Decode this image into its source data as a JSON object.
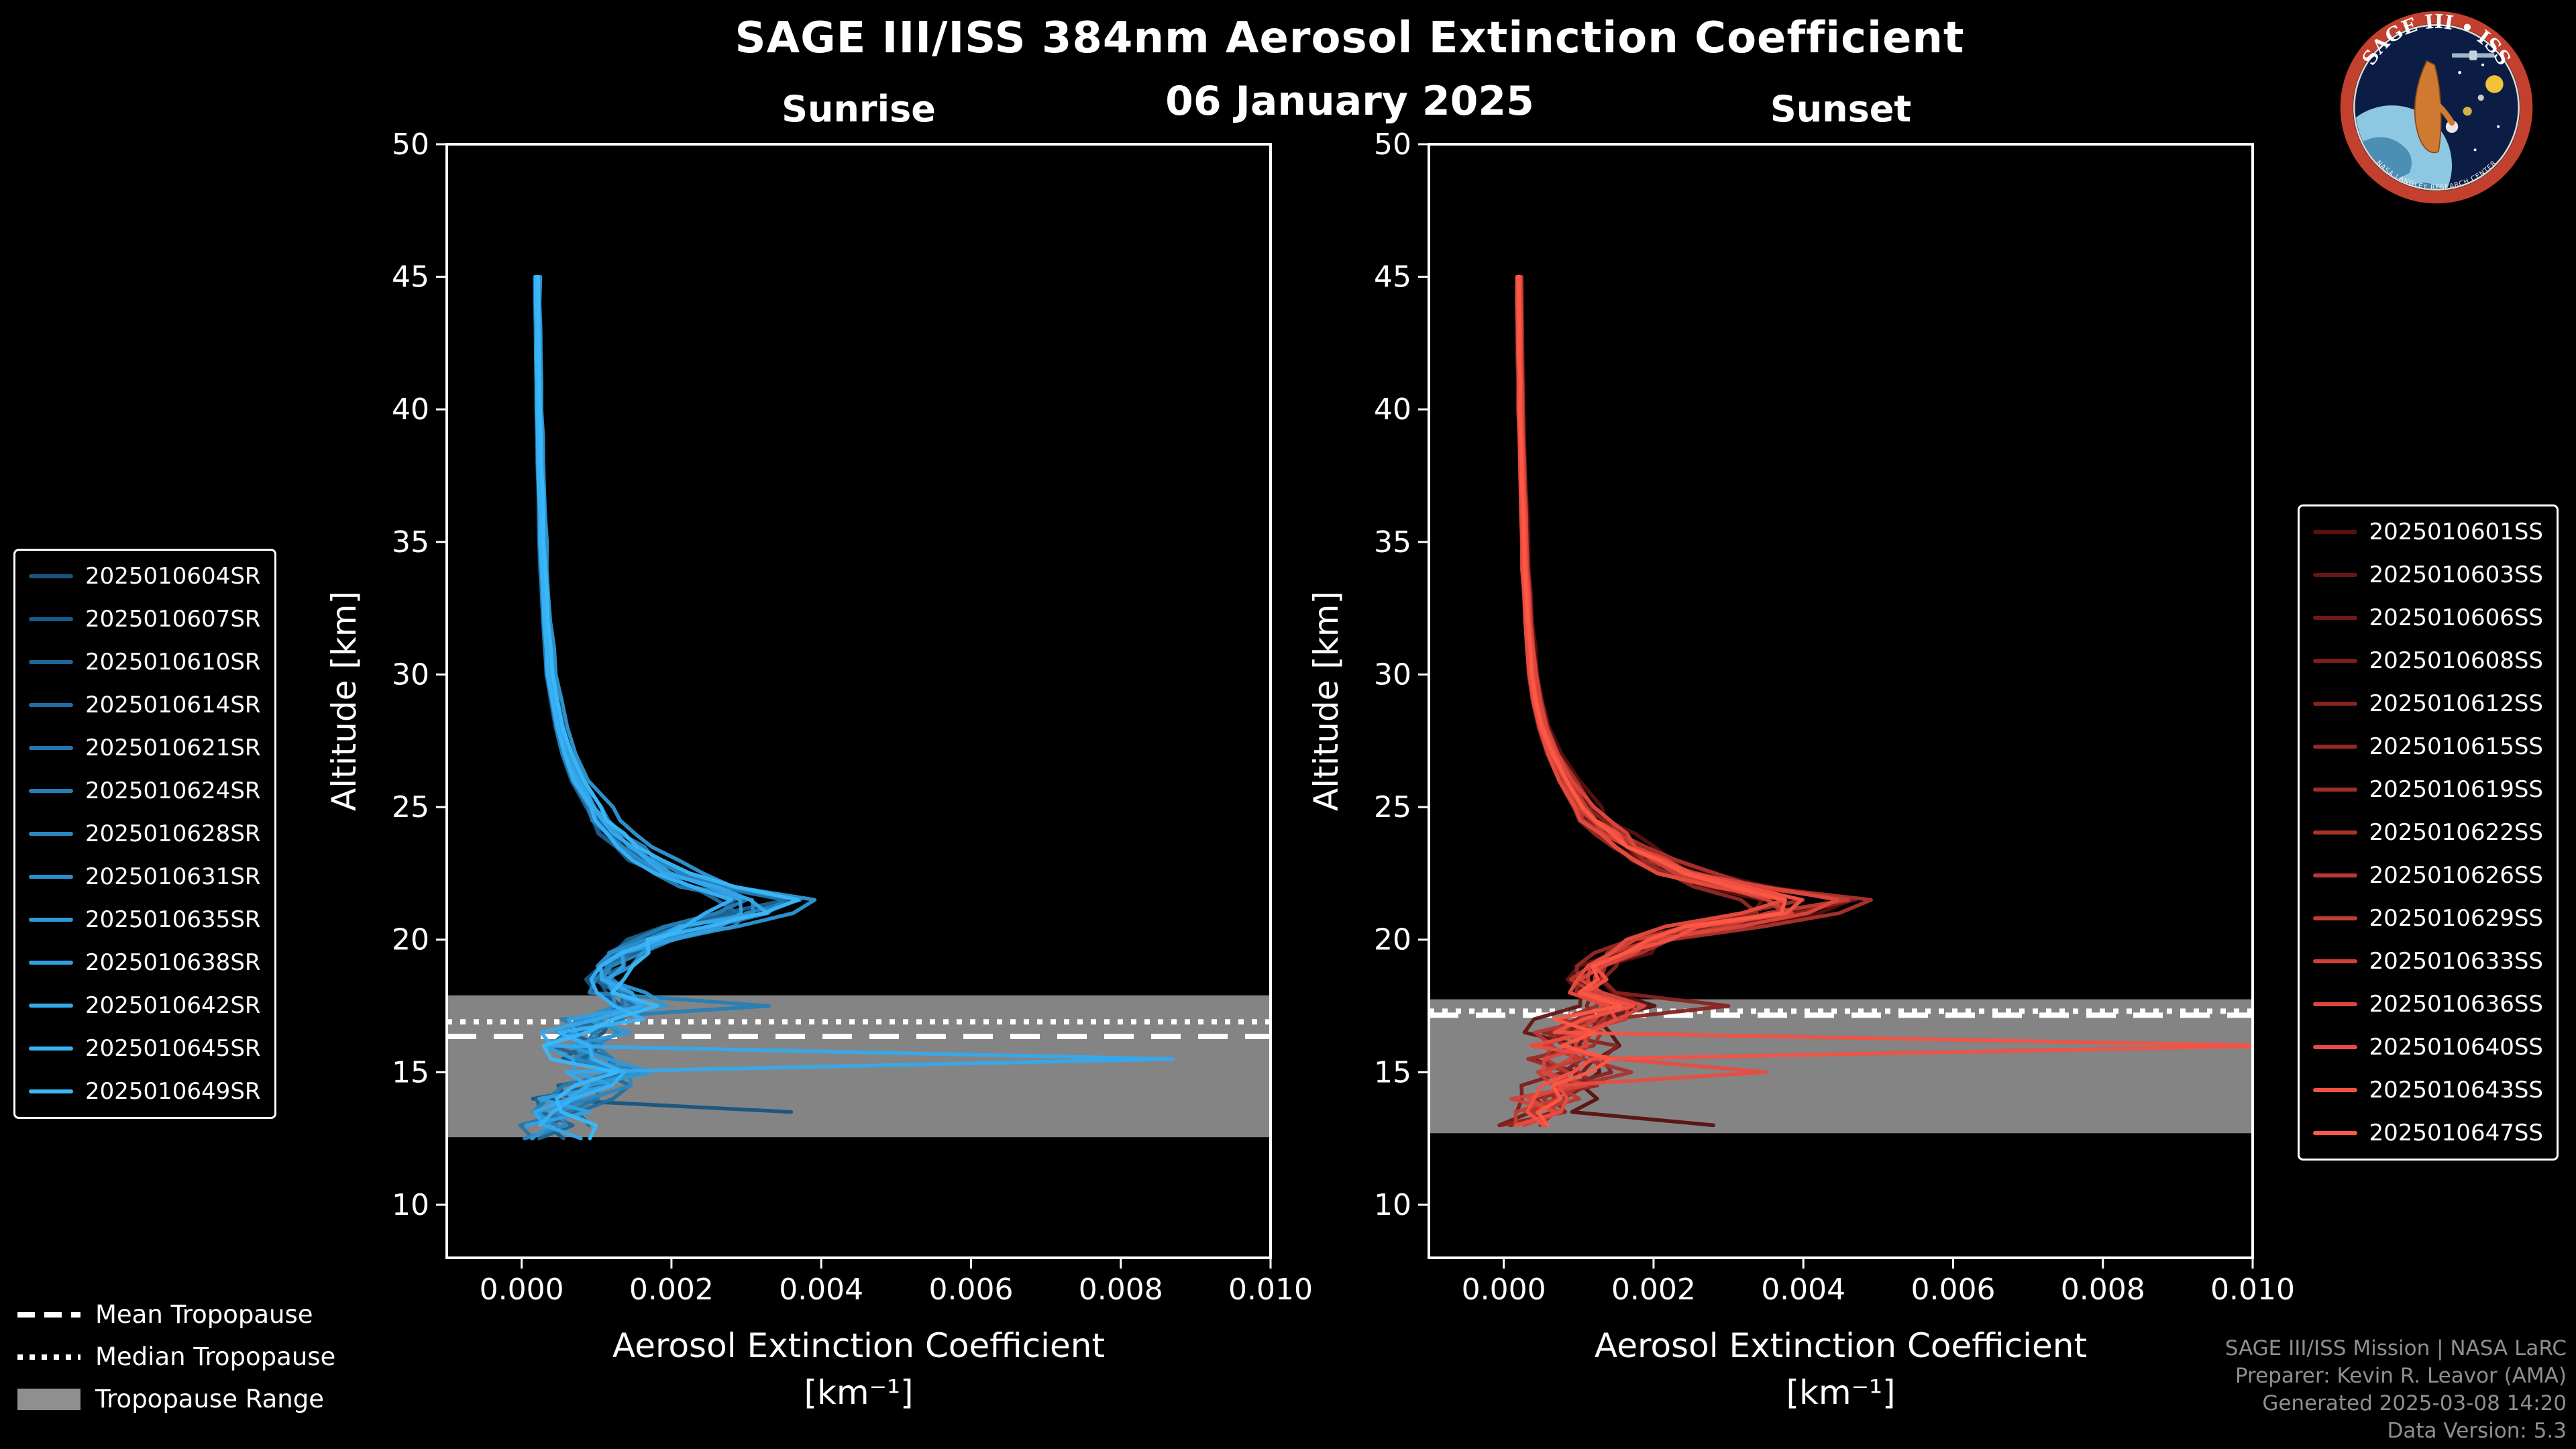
{
  "header": {
    "title": "SAGE III/ISS 384nm Aerosol Extinction Coefficient",
    "date": "06 January 2025"
  },
  "logo": {
    "name": "SAGE III • ISS",
    "ring_text": "NASA LANGLEY RESEARCH CENTER"
  },
  "footer": {
    "lines": [
      "SAGE III/ISS Mission | NASA LaRC",
      "Preparer: Kevin R. Leavor (AMA)",
      "Generated 2025-03-08 14:20",
      "Data Version: 5.3"
    ]
  },
  "tropopause_legend": [
    {
      "label": "Mean Tropopause",
      "style": "dashed"
    },
    {
      "label": "Median Tropopause",
      "style": "dotted"
    },
    {
      "label": "Tropopause Range",
      "style": "band"
    }
  ],
  "colors": {
    "background": "#000000",
    "frame": "#ffffff",
    "band": "#8f8f8f",
    "footer_text": "#8f8f8f"
  },
  "chart_data": [
    {
      "type": "line",
      "title": "Sunrise",
      "xlabel": "Aerosol Extinction Coefficient",
      "xlabel_units": "[km⁻¹]",
      "ylabel": "Altitude [km]",
      "xlim": [
        -0.001,
        0.01
      ],
      "ylim": [
        8,
        50
      ],
      "xticks": [
        0.0,
        0.002,
        0.004,
        0.006,
        0.008,
        0.01
      ],
      "xtick_labels": [
        "0.000",
        "0.002",
        "0.004",
        "0.006",
        "0.008",
        "0.010"
      ],
      "yticks": [
        10,
        15,
        20,
        25,
        30,
        35,
        40,
        45,
        50
      ],
      "tropopause": {
        "mean": 16.35,
        "median": 16.9,
        "range": [
          12.55,
          17.9
        ]
      },
      "altitudes": [
        45,
        44,
        43,
        42,
        41,
        40,
        39,
        38,
        37,
        36,
        35,
        34,
        33,
        32,
        31,
        30,
        29,
        28,
        27,
        26,
        25,
        24.5,
        24,
        23.5,
        23,
        22.5,
        22,
        21.5,
        21,
        20.5,
        20,
        19.5,
        19,
        18.5,
        18,
        17.5,
        17,
        16.5,
        16,
        15.5,
        15,
        14.5,
        14,
        13.5,
        13,
        12.5
      ],
      "base_profile": [
        0.0002,
        0.0002,
        0.00021,
        0.00021,
        0.00022,
        0.00022,
        0.00023,
        0.00024,
        0.00025,
        0.00026,
        0.00027,
        0.00028,
        0.0003,
        0.00032,
        0.00035,
        0.00038,
        0.00043,
        0.0005,
        0.0006,
        0.00075,
        0.00095,
        0.00105,
        0.0012,
        0.0014,
        0.00165,
        0.002,
        0.00245,
        0.0031,
        0.0029,
        0.0023,
        0.00175,
        0.0014,
        0.0012,
        0.0011,
        0.00125,
        0.0015,
        0.0011,
        0.0008,
        0.0007,
        0.0009,
        0.0011,
        0.00085,
        0.00065,
        0.00055,
        0.00045,
        0.00035
      ],
      "series": [
        {
          "name": "2025010604SR",
          "color": "#17547e",
          "scale": 0.92,
          "seed": 11,
          "bottom": 13.4,
          "spikes": [
            [
              13.5,
              0.0036
            ]
          ]
        },
        {
          "name": "2025010607SR",
          "color": "#1a5c89",
          "scale": 0.88,
          "seed": 12,
          "bottom": 12.5,
          "spikes": []
        },
        {
          "name": "2025010610SR",
          "color": "#1d6594",
          "scale": 1.02,
          "seed": 13,
          "bottom": 12.5,
          "spikes": []
        },
        {
          "name": "2025010614SR",
          "color": "#206d9f",
          "scale": 0.95,
          "seed": 14,
          "bottom": 13.0,
          "spikes": []
        },
        {
          "name": "2025010621SR",
          "color": "#2376aa",
          "scale": 1.08,
          "seed": 15,
          "bottom": 12.5,
          "spikes": []
        },
        {
          "name": "2025010624SR",
          "color": "#267eb5",
          "scale": 0.9,
          "seed": 16,
          "bottom": 13.0,
          "spikes": [
            [
              17.6,
              0.0033
            ]
          ]
        },
        {
          "name": "2025010628SR",
          "color": "#2987c0",
          "scale": 1.12,
          "seed": 17,
          "bottom": 12.5,
          "spikes": []
        },
        {
          "name": "2025010631SR",
          "color": "#2c8fcb",
          "scale": 0.97,
          "seed": 18,
          "bottom": 13.5,
          "spikes": []
        },
        {
          "name": "2025010635SR",
          "color": "#2f98d6",
          "scale": 1.22,
          "seed": 19,
          "bottom": 12.5,
          "spikes": []
        },
        {
          "name": "2025010638SR",
          "color": "#32a0e1",
          "scale": 1.05,
          "seed": 20,
          "bottom": 13.0,
          "spikes": []
        },
        {
          "name": "2025010642SR",
          "color": "#35a9ec",
          "scale": 1.0,
          "seed": 21,
          "bottom": 12.5,
          "spikes": [
            [
              15.5,
              0.0087
            ]
          ]
        },
        {
          "name": "2025010645SR",
          "color": "#38b1f7",
          "scale": 0.93,
          "seed": 22,
          "bottom": 13.0,
          "spikes": []
        },
        {
          "name": "2025010649SR",
          "color": "#3bb8fa",
          "scale": 1.1,
          "seed": 23,
          "bottom": 12.5,
          "spikes": []
        }
      ]
    },
    {
      "type": "line",
      "title": "Sunset",
      "xlabel": "Aerosol Extinction Coefficient",
      "xlabel_units": "[km⁻¹]",
      "ylabel": "Altitude [km]",
      "xlim": [
        -0.001,
        0.01
      ],
      "ylim": [
        8,
        50
      ],
      "xticks": [
        0.0,
        0.002,
        0.004,
        0.006,
        0.008,
        0.01
      ],
      "xtick_labels": [
        "0.000",
        "0.002",
        "0.004",
        "0.006",
        "0.008",
        "0.010"
      ],
      "yticks": [
        10,
        15,
        20,
        25,
        30,
        35,
        40,
        45,
        50
      ],
      "tropopause": {
        "mean": 17.15,
        "median": 17.3,
        "range": [
          12.7,
          17.75
        ]
      },
      "altitudes": [
        45,
        44,
        43,
        42,
        41,
        40,
        39,
        38,
        37,
        36,
        35,
        34,
        33,
        32,
        31,
        30,
        29,
        28,
        27,
        26,
        25,
        24.5,
        24,
        23.5,
        23,
        22.5,
        22,
        21.5,
        21,
        20.5,
        20,
        19.5,
        19,
        18.5,
        18,
        17.5,
        17,
        16.5,
        16,
        15.5,
        15,
        14.5,
        14,
        13.5,
        13,
        12.5
      ],
      "base_profile": [
        0.0002,
        0.0002,
        0.00021,
        0.00021,
        0.00022,
        0.00022,
        0.00023,
        0.00024,
        0.00025,
        0.00026,
        0.00027,
        0.00028,
        0.0003,
        0.00032,
        0.00035,
        0.00038,
        0.00043,
        0.00052,
        0.00065,
        0.00082,
        0.00105,
        0.0012,
        0.0014,
        0.00165,
        0.00195,
        0.00235,
        0.003,
        0.004,
        0.0036,
        0.0027,
        0.00195,
        0.0015,
        0.00125,
        0.00112,
        0.00122,
        0.0014,
        0.00105,
        0.00085,
        0.0009,
        0.001,
        0.00088,
        0.00072,
        0.00058,
        0.00048,
        0.0004,
        0.00034
      ],
      "series": [
        {
          "name": "2025010601SS",
          "color": "#581010",
          "scale": 1.2,
          "seed": 31,
          "bottom": 13.0,
          "spikes": [
            [
              13.0,
              0.0028
            ]
          ]
        },
        {
          "name": "2025010603SS",
          "color": "#641514",
          "scale": 0.9,
          "seed": 32,
          "bottom": 12.7,
          "spikes": []
        },
        {
          "name": "2025010606SS",
          "color": "#701a18",
          "scale": 1.05,
          "seed": 33,
          "bottom": 12.7,
          "spikes": []
        },
        {
          "name": "2025010608SS",
          "color": "#7c1f1c",
          "scale": 0.95,
          "seed": 34,
          "bottom": 13.2,
          "spikes": []
        },
        {
          "name": "2025010612SS",
          "color": "#882420",
          "scale": 1.1,
          "seed": 35,
          "bottom": 12.7,
          "spikes": [
            [
              17.4,
              0.003
            ]
          ]
        },
        {
          "name": "2025010615SS",
          "color": "#942924",
          "scale": 0.88,
          "seed": 36,
          "bottom": 13.0,
          "spikes": []
        },
        {
          "name": "2025010619SS",
          "color": "#a02e28",
          "scale": 1.0,
          "seed": 37,
          "bottom": 12.7,
          "spikes": []
        },
        {
          "name": "2025010622SS",
          "color": "#ac332c",
          "scale": 1.15,
          "seed": 38,
          "bottom": 13.4,
          "spikes": []
        },
        {
          "name": "2025010626SS",
          "color": "#b83830",
          "scale": 0.92,
          "seed": 39,
          "bottom": 12.7,
          "spikes": []
        },
        {
          "name": "2025010629SS",
          "color": "#c43d34",
          "scale": 1.07,
          "seed": 40,
          "bottom": 13.0,
          "spikes": []
        },
        {
          "name": "2025010633SS",
          "color": "#d04238",
          "scale": 0.97,
          "seed": 41,
          "bottom": 12.7,
          "spikes": []
        },
        {
          "name": "2025010636SS",
          "color": "#dc473c",
          "scale": 1.12,
          "seed": 42,
          "bottom": 13.2,
          "spikes": []
        },
        {
          "name": "2025010640SS",
          "color": "#e84c40",
          "scale": 0.9,
          "seed": 43,
          "bottom": 12.7,
          "spikes": [
            [
              15.0,
              0.0035
            ]
          ]
        },
        {
          "name": "2025010643SS",
          "color": "#f45144",
          "scale": 1.03,
          "seed": 44,
          "bottom": 12.7,
          "spikes": [
            [
              16.0,
              0.0103
            ]
          ]
        },
        {
          "name": "2025010647SS",
          "color": "#ff5844",
          "scale": 1.0,
          "seed": 45,
          "bottom": 13.0,
          "spikes": []
        }
      ]
    }
  ]
}
